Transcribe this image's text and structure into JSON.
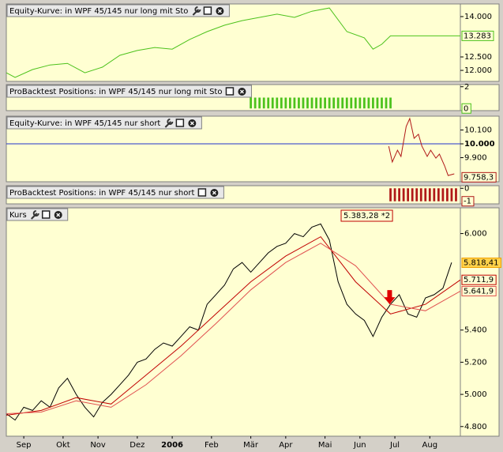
{
  "chart_data": [
    {
      "type": "line",
      "title": "Equity-Kurve: in WPF 45/145 nur long mit Sto",
      "xlim": [
        0,
        52
      ],
      "ylim": [
        11590,
        14470
      ],
      "yticks": [
        {
          "value": 14000,
          "label": "14.000"
        },
        {
          "value": 12500,
          "label": "12.500"
        },
        {
          "value": 12000,
          "label": "12.000"
        }
      ],
      "series": [
        {
          "color": "#4cc21c",
          "x": [
            0,
            1,
            3,
            5,
            7,
            9,
            11,
            13,
            15,
            17,
            19,
            21,
            23,
            25,
            27,
            29,
            31,
            33,
            35,
            37,
            39,
            41,
            42,
            43,
            44,
            52
          ],
          "values": [
            11910,
            11740,
            12030,
            12200,
            12260,
            11910,
            12120,
            12560,
            12740,
            12850,
            12790,
            13150,
            13440,
            13680,
            13850,
            13970,
            14090,
            13970,
            14200,
            14320,
            13440,
            13210,
            12790,
            12970,
            13283,
            13283
          ]
        }
      ],
      "value_boxes": [
        {
          "value": 13283,
          "label": "13.283",
          "color": "#4cc21c"
        }
      ]
    },
    {
      "type": "bar",
      "title": "ProBacktest Positions: in WPF 45/145 nur long mit Sto",
      "xlim": [
        0,
        52
      ],
      "ylim": [
        -0.2,
        2.2
      ],
      "yticks": [
        2
      ],
      "series": [
        {
          "color": "#4cc21c",
          "x": [
            28,
            28.5,
            29,
            29.5,
            30,
            30.5,
            31,
            31.5,
            32,
            32.5,
            33,
            33.5,
            34,
            34.5,
            35,
            35.5,
            36,
            36.5,
            37,
            37.5,
            38,
            38.5,
            39,
            39.5,
            40,
            40.5,
            41,
            41.5,
            42,
            42.5,
            43,
            43.5,
            44
          ],
          "values": [
            1,
            1,
            1,
            1,
            1,
            1,
            1,
            1,
            1,
            1,
            1,
            1,
            1,
            1,
            1,
            1,
            1,
            1,
            1,
            1,
            1,
            1,
            1,
            1,
            1,
            1,
            1,
            1,
            1,
            1,
            1,
            1,
            1
          ]
        }
      ],
      "value_boxes": [
        {
          "value": 0,
          "label": "0",
          "color": "#4cc21c"
        }
      ]
    },
    {
      "type": "line",
      "title": "Equity-Kurve: in WPF 45/145 nur short",
      "xlim": [
        0,
        52
      ],
      "ylim": [
        9726,
        10200
      ],
      "yticks": [
        {
          "value": 10100,
          "label": "10.100"
        },
        {
          "value": 10000,
          "label": "10.000"
        },
        {
          "value": 9900,
          "label": "9.900"
        }
      ],
      "hline": {
        "value": 10000,
        "color": "#2233cc"
      },
      "series": [
        {
          "color": "#b01818",
          "x": [
            43.8,
            44.2,
            44.8,
            45.2,
            45.8,
            46.2,
            46.7,
            47.2,
            47.6,
            48.2,
            48.6,
            49.2,
            49.6,
            50.2,
            50.6,
            51.3
          ],
          "values": [
            9983,
            9869,
            9954,
            9909,
            10126,
            10183,
            10040,
            10069,
            9983,
            9909,
            9954,
            9897,
            9926,
            9840,
            9771,
            9783
          ]
        }
      ],
      "value_boxes": [
        {
          "value": 9758.3,
          "label": "9.758,3",
          "color": "#b01818"
        }
      ]
    },
    {
      "type": "bar",
      "title": "ProBacktest Positions: in WPF 45/145 nur short",
      "xlim": [
        0,
        52
      ],
      "ylim": [
        -1.2,
        0.2
      ],
      "yticks": [
        0
      ],
      "series": [
        {
          "color": "#b01818",
          "x": [
            44,
            44.5,
            45,
            45.5,
            46,
            46.5,
            47,
            47.5,
            48,
            48.5,
            49,
            49.5,
            50,
            50.5,
            51,
            51.5
          ],
          "values": [
            -1,
            -1,
            -1,
            -1,
            -1,
            -1,
            -1,
            -1,
            -1,
            -1,
            -1,
            -1,
            -1,
            -1,
            -1,
            -1
          ]
        }
      ],
      "value_boxes": [
        {
          "value": -1,
          "label": "-1",
          "color": "#b01818"
        }
      ]
    },
    {
      "type": "line",
      "title": "Kurs",
      "xlim": [
        0,
        52
      ],
      "ylim": [
        4740,
        6160
      ],
      "xticks": [
        {
          "value": 2,
          "label": "Sep"
        },
        {
          "value": 6.5,
          "label": "Okt"
        },
        {
          "value": 10.5,
          "label": "Nov"
        },
        {
          "value": 15,
          "label": "Dez"
        },
        {
          "value": 19,
          "label": "2006",
          "emphasis": true
        },
        {
          "value": 23.5,
          "label": "Feb"
        },
        {
          "value": 28,
          "label": "Mär"
        },
        {
          "value": 32,
          "label": "Apr"
        },
        {
          "value": 36.5,
          "label": "Mai"
        },
        {
          "value": 40.5,
          "label": "Jun"
        },
        {
          "value": 44.5,
          "label": "Jul"
        },
        {
          "value": 48.5,
          "label": "Aug"
        }
      ],
      "yticks": [
        {
          "value": 6000,
          "label": "6.000"
        },
        {
          "value": 5400,
          "label": "5.400"
        },
        {
          "value": 5200,
          "label": "5.200"
        },
        {
          "value": 5000,
          "label": "5.000"
        },
        {
          "value": 4800,
          "label": "4.800"
        }
      ],
      "series": [
        {
          "color": "#000000",
          "x": [
            0,
            1,
            2,
            3,
            4,
            5,
            6,
            7,
            8,
            9,
            10,
            11,
            12,
            13,
            14,
            15,
            16,
            17,
            18,
            19,
            20,
            21,
            22,
            23,
            24,
            25,
            26,
            27,
            28,
            29,
            30,
            31,
            32,
            33,
            34,
            35,
            36,
            37,
            38,
            39,
            40,
            41,
            42,
            43,
            44,
            45,
            46,
            47,
            48,
            49,
            50,
            51
          ],
          "values": [
            4880,
            4840,
            4920,
            4900,
            4960,
            4920,
            5040,
            5100,
            5000,
            4920,
            4860,
            4950,
            5000,
            5060,
            5120,
            5200,
            5220,
            5280,
            5320,
            5300,
            5360,
            5420,
            5400,
            5560,
            5620,
            5680,
            5780,
            5820,
            5760,
            5820,
            5880,
            5920,
            5940,
            6000,
            5980,
            6040,
            6060,
            5960,
            5700,
            5560,
            5500,
            5460,
            5360,
            5480,
            5560,
            5620,
            5500,
            5480,
            5600,
            5620,
            5660,
            5820
          ]
        },
        {
          "color": "#c00000",
          "x": [
            0,
            4,
            8,
            12,
            16,
            20,
            24,
            28,
            32,
            36,
            40,
            44,
            48,
            52
          ],
          "values": [
            4870,
            4900,
            4980,
            4940,
            5120,
            5300,
            5500,
            5700,
            5860,
            5980,
            5700,
            5500,
            5560,
            5712
          ]
        },
        {
          "color": "#e05050",
          "x": [
            0,
            4,
            8,
            12,
            16,
            20,
            24,
            28,
            32,
            36,
            40,
            44,
            48,
            52
          ],
          "values": [
            4880,
            4890,
            4960,
            4920,
            5060,
            5240,
            5440,
            5650,
            5820,
            5940,
            5800,
            5560,
            5520,
            5642
          ]
        }
      ],
      "value_boxes": [
        {
          "value": 5818.41,
          "label": "5.818,41",
          "color": "#f0a000"
        },
        {
          "value": 5711.9,
          "label": "5.711,9",
          "color": "#c00000"
        },
        {
          "value": 5641.9,
          "label": "5.641,9",
          "color": "#e05050"
        }
      ],
      "annotation": {
        "text": "5.383,28 *2"
      },
      "markers": [
        {
          "x": 43.9,
          "y": 5560,
          "color": "#e00000"
        }
      ]
    }
  ]
}
